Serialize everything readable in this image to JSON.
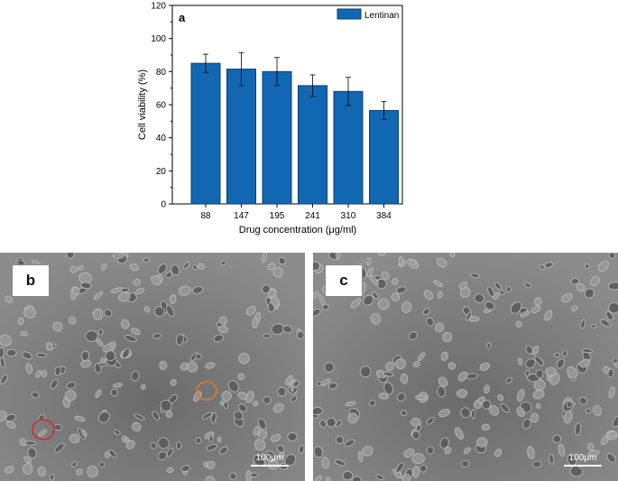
{
  "chart_data": {
    "type": "bar",
    "panel_label": "a",
    "categories": [
      "88",
      "147",
      "195",
      "241",
      "310",
      "384"
    ],
    "series": [
      {
        "name": "Lentinan",
        "values": [
          85,
          81.5,
          80,
          71.5,
          68,
          56.5
        ],
        "errors": [
          5.5,
          10,
          8.5,
          6.5,
          8.5,
          5.5
        ]
      }
    ],
    "xlabel": "Drug concentration (μg/ml)",
    "ylabel": "Cell viability (%)",
    "ylim": [
      0,
      120
    ],
    "yticks": [
      "0",
      "20",
      "40",
      "60",
      "80",
      "100",
      "120"
    ],
    "grid": false,
    "legend": "top-right",
    "colors": {
      "bar": "#1167b1",
      "bar_edge": "#0b3f73"
    }
  },
  "images": [
    {
      "panel_label": "b",
      "scalebar": "100μm"
    },
    {
      "panel_label": "c",
      "scalebar": "100μm"
    }
  ]
}
